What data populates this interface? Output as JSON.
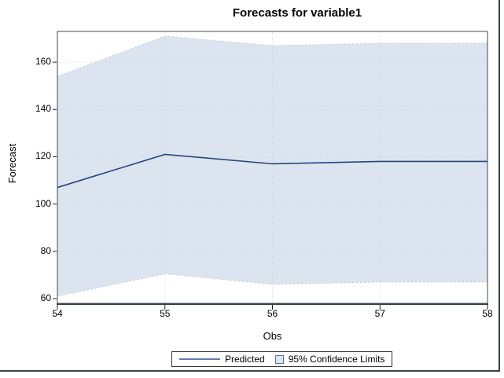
{
  "title": "Forecasts for variable1",
  "chart_data": {
    "type": "area",
    "title": "Forecasts for variable1",
    "xlabel": "Obs",
    "ylabel": "Forecast",
    "x": [
      54,
      55,
      56,
      57,
      58
    ],
    "series": [
      {
        "name": "Predicted",
        "role": "line",
        "values": [
          107,
          121,
          117,
          118,
          118
        ]
      },
      {
        "name": "Upper 95% Confidence Limit",
        "role": "upper",
        "values": [
          154,
          171,
          167,
          168,
          168
        ]
      },
      {
        "name": "Lower 95% Confidence Limit",
        "role": "lower",
        "values": [
          61,
          70.5,
          66,
          67,
          67
        ]
      }
    ],
    "xlim": [
      54,
      58
    ],
    "ylim": [
      58,
      173
    ],
    "xticks": [
      54,
      55,
      56,
      57,
      58
    ],
    "yticks": [
      60,
      80,
      100,
      120,
      140,
      160
    ],
    "grid": true,
    "legend_position": "bottom"
  },
  "legend": {
    "items": [
      {
        "label": "Predicted",
        "type": "line"
      },
      {
        "label": "95% Confidence Limits",
        "type": "swatch"
      }
    ]
  },
  "colors": {
    "band_fill": "#dce4f0",
    "band_edge": "#bccadf",
    "predicted_line": "#26477c",
    "frame": "#40484f",
    "axis_baseline": "#39434e",
    "grid": "#ccd2da",
    "tick": "#222222",
    "outer_border": "#38424b",
    "legend_line": "#5e7dab",
    "swatch_border": "#5a7299"
  }
}
